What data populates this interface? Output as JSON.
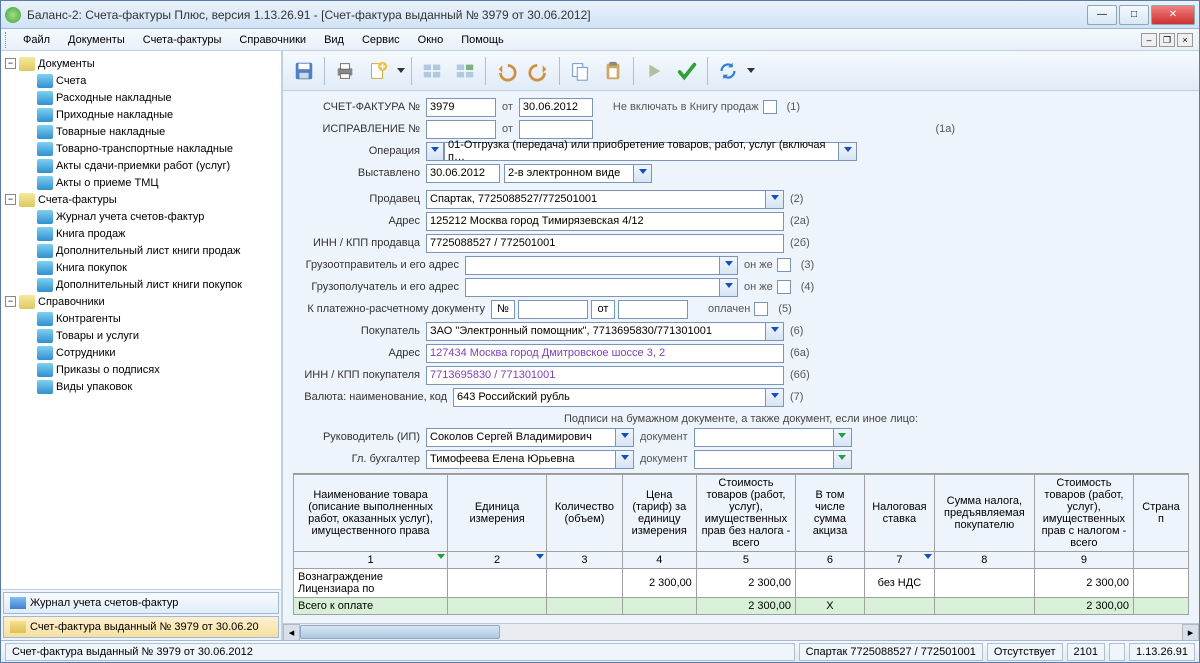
{
  "window": {
    "title": "Баланс-2: Счета-фактуры Плюс, версия 1.13.26.91 - [Счет-фактура выданный № 3979 от 30.06.2012]"
  },
  "menu": [
    "Файл",
    "Документы",
    "Счета-фактуры",
    "Справочники",
    "Вид",
    "Сервис",
    "Окно",
    "Помощь"
  ],
  "tree": {
    "root1": "Документы",
    "r1items": [
      "Счета",
      "Расходные накладные",
      "Приходные накладные",
      "Товарные накладные",
      "Товарно-транспортные накладные",
      "Акты сдачи-приемки работ (услуг)",
      "Акты о приеме ТМЦ"
    ],
    "root2": "Счета-фактуры",
    "r2items": [
      "Журнал учета счетов-фактур",
      "Книга продаж",
      "Дополнительный лист книги продаж",
      "Книга покупок",
      "Дополнительный лист книги покупок"
    ],
    "root3": "Справочники",
    "r3items": [
      "Контрагенты",
      "Товары и услуги",
      "Сотрудники",
      "Приказы о подписях",
      "Виды упаковок"
    ]
  },
  "tabs": {
    "t1": "Журнал учета счетов-фактур",
    "t2": "Счет-фактура выданный № 3979 от 30.06.20"
  },
  "form": {
    "invoice_label": "СЧЕТ-ФАКТУРА №",
    "invoice_no": "3979",
    "ot": "от",
    "invoice_date": "30.06.2012",
    "no_book": "Не включать в Книгу продаж",
    "code1": "(1)",
    "corr_label": "ИСПРАВЛЕНИЕ №",
    "code1a": "(1а)",
    "op_label": "Операция",
    "op_val": "01-Отгрузка (передача) или приобретение товаров, работ, услуг (включая п…",
    "issued_label": "Выставлено",
    "issued_date": "30.06.2012",
    "issued_mode": "2-в электронном виде",
    "seller_label": "Продавец",
    "seller_val": "Спартак, 7725088527/772501001",
    "code2": "(2)",
    "addr_label": "Адрес",
    "addr_val": "125212 Москва город Тимирязевская 4/12",
    "code2a": "(2а)",
    "innkpp_s_label": "ИНН / КПП продавца",
    "innkpp_s_val": "7725088527 / 772501001",
    "code2b": "(2б)",
    "shipper_label": "Грузоотправитель и его адрес",
    "same": "он же",
    "code3": "(3)",
    "consignee_label": "Грузополучатель и его адрес",
    "code4": "(4)",
    "paydoc_label": "К платежно-расчетному документу",
    "num": "№",
    "paid": "оплачен",
    "code5": "(5)",
    "buyer_label": "Покупатель",
    "buyer_val": "ЗАО \"Электронный помощник\", 7713695830/771301001",
    "code6": "(6)",
    "baddr_label": "Адрес",
    "baddr_val": "127434 Москва город Дмитровское шоссе 3, 2",
    "code6a": "(6а)",
    "innkpp_b_label": "ИНН / КПП покупателя",
    "innkpp_b_val": "7713695830 / 771301001",
    "code6b": "(6б)",
    "curr_label": "Валюта: наименование, код",
    "curr_val": "643 Российский рубль",
    "code7": "(7)",
    "sign_text": "Подписи на бумажном документе, а также документ, если иное лицо:",
    "head_label": "Руководитель (ИП)",
    "head_val": "Соколов Сергей Владимирович",
    "doc": "документ",
    "acc_label": "Гл. бухгалтер",
    "acc_val": "Тимофеева Елена Юрьевна"
  },
  "table": {
    "headers": [
      "Наименование товара (описание выполненных работ, оказанных услуг), имущественного права",
      "Единица измерения",
      "Количество (объем)",
      "Цена (тариф) за единицу измерения",
      "Стоимость товаров (работ, услуг), имущественных прав без налога - всего",
      "В том числе сумма акциза",
      "Налоговая ставка",
      "Сумма налога, предъявляемая покупателю",
      "Стоимость товаров (работ, услуг), имущественных прав с налогом - всего",
      "Страна п"
    ],
    "colnums": [
      "1",
      "2",
      "3",
      "4",
      "5",
      "6",
      "7",
      "8",
      "9",
      ""
    ],
    "widths": [
      190,
      120,
      80,
      80,
      104,
      84,
      74,
      106,
      104,
      60
    ],
    "row1": {
      "name": "Вознаграждение Лицензиара по",
      "price": "2 300,00",
      "cost": "2 300,00",
      "rate": "без НДС",
      "total": "2 300,00"
    },
    "total": {
      "label": "Всего к оплате",
      "cost": "2 300,00",
      "x": "X",
      "total": "2 300,00"
    }
  },
  "status": {
    "doc": "Счет-фактура выданный № 3979 от 30.06.2012",
    "org": "Спартак 7725088527 / 772501001",
    "state": "Отсутствует",
    "code": "2101",
    "ver": "1.13.26.91"
  },
  "colors": {
    "derived": "#8040c0",
    "totalbg": "#d8f0d8"
  }
}
